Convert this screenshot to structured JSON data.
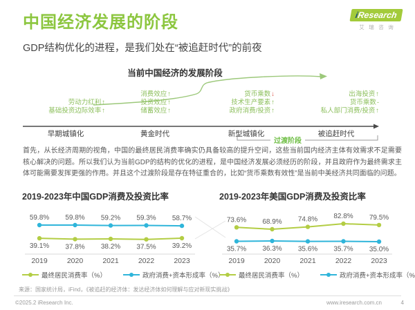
{
  "header": {
    "title": "中国经济发展的阶段",
    "subtitle": "GDP结构优化的进程，是我们处在“被追赶时代”的前夜",
    "logo": {
      "i": "i",
      "research": "Research",
      "chinese": "艾瑞咨询"
    }
  },
  "colors": {
    "brand_green": "#8CC63F",
    "chart_green": "#B3CD44",
    "chart_blue": "#2FB5DA",
    "negative_red": "#D94F43"
  },
  "diagram": {
    "title": "当前中国经济的发展阶段",
    "transition_label": "过渡阶段",
    "stages": [
      {
        "name": "早期城镇化",
        "factors": [
          {
            "text": "劳动力红利",
            "arrow": "↑"
          },
          {
            "text": "基础投资边际效率",
            "arrow": "↑"
          }
        ]
      },
      {
        "name": "黄金时代",
        "factors": [
          {
            "text": "消费效应",
            "arrow": "↑"
          },
          {
            "text": "投资效应",
            "arrow": "↑"
          },
          {
            "text": "储蓄效应",
            "arrow": "↑"
          }
        ]
      },
      {
        "name": "新型城镇化",
        "factors": [
          {
            "text": "货币乘数",
            "arrow": "↓",
            "arrow_color": "red"
          },
          {
            "text": "技术生产要素",
            "arrow": "↑"
          },
          {
            "text": "政府消费/投资",
            "arrow": "↑"
          }
        ]
      },
      {
        "name": "被追赶时代",
        "factors": [
          {
            "text": "出海投资",
            "arrow": "↑"
          },
          {
            "text": "货币乘数",
            "arrow": "-"
          },
          {
            "text": "私人部门消费/投资",
            "arrow": "↑"
          }
        ]
      }
    ]
  },
  "paragraph": "首先，从长经济周期的视角，中国的最终居民消费率确实仍具备较高的提升空间，这些当前国内经济主体有效需求不足需要核心解决的问题。所以我们认为当前GDP的结构的优化的进程，是中国经济发展必须经历的阶段，并且政府作为最终需求主体可能需要发挥更强的作用。并且这个过渡阶段是存在特征重合的，比如“货币乘数有效性”是当前中美经济共同面临的问题。",
  "chart_data": [
    {
      "type": "line",
      "title": "2019-2023年中国GDP消费及投资比率",
      "x": [
        "2019",
        "2020",
        "2021",
        "2022",
        "2023"
      ],
      "series": [
        {
          "name": "最终居民消费率（%）",
          "color": "#B3CD44",
          "values": [
            39.1,
            37.8,
            38.2,
            37.5,
            39.2
          ],
          "label_position": "below"
        },
        {
          "name": "政府消费+资本形成率（%）",
          "color": "#2FB5DA",
          "values": [
            59.8,
            59.8,
            59.2,
            59.3,
            58.7
          ],
          "label_position": "above"
        }
      ],
      "legend_position": "bottom",
      "grid": false
    },
    {
      "type": "line",
      "title": "2019-2023年美国GDP消费及投资比率",
      "x": [
        "2019",
        "2020",
        "2021",
        "2022",
        "2023"
      ],
      "series": [
        {
          "name": "最终居民消费率（%）",
          "color": "#B3CD44",
          "values": [
            73.6,
            68.9,
            74.8,
            82.8,
            79.5
          ],
          "label_position": "above"
        },
        {
          "name": "政府消费+资本形成率（%）",
          "color": "#2FB5DA",
          "values": [
            35.7,
            36.3,
            35.6,
            35.7,
            35.0
          ],
          "label_position": "below"
        }
      ],
      "legend_position": "bottom",
      "grid": false
    }
  ],
  "footer": {
    "source": "来源：国家统计局，iFind，《被追赶的经济体：发达经济体如何理解与应对新现实挑战》",
    "copyright": "©2025.2 iResearch Inc.",
    "website": "www.iresearch.com.cn",
    "page": "4"
  }
}
